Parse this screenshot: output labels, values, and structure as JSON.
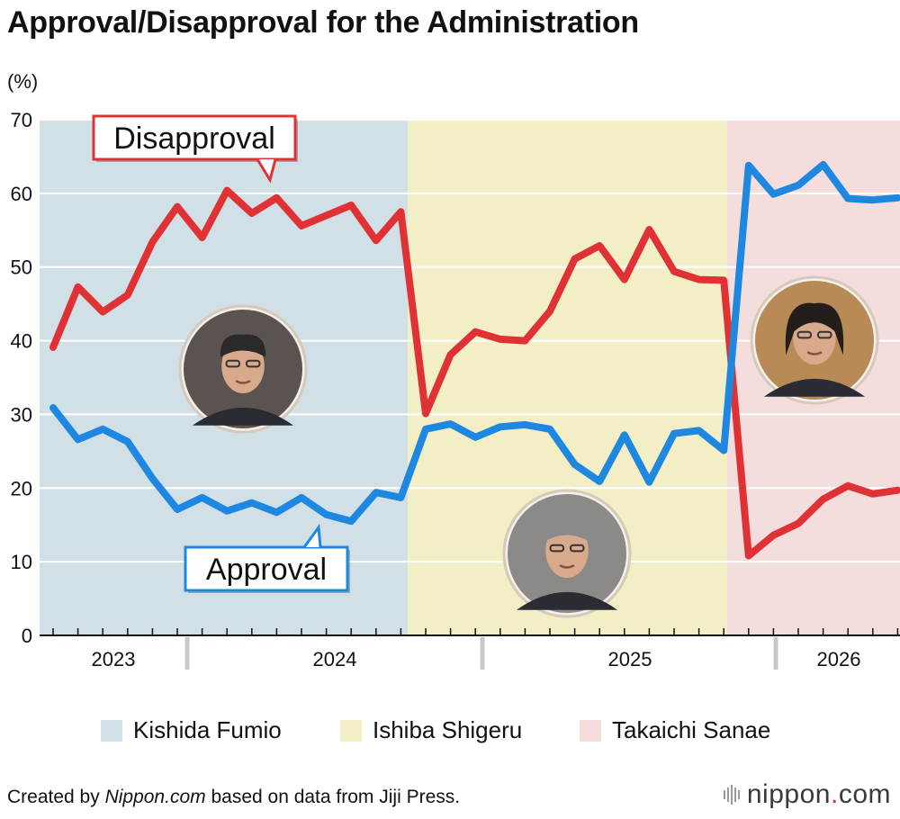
{
  "chart_data": {
    "type": "line",
    "title": "Approval/Disapproval for the Administration",
    "ylabel": "(%)",
    "ylim": [
      0,
      70
    ],
    "yticks": [
      0,
      10,
      20,
      30,
      40,
      50,
      60,
      70
    ],
    "grid": true,
    "year_labels": [
      "2023",
      "2024",
      "2025",
      "2026"
    ],
    "series": [
      {
        "name": "Disapproval",
        "color": "#e03234",
        "values": [
          39.1,
          47.3,
          43.9,
          46.2,
          53.4,
          58.2,
          54.0,
          60.4,
          57.3,
          59.4,
          55.6,
          57.0,
          58.4,
          53.6,
          57.5,
          30.1,
          38.1,
          41.2,
          40.2,
          40.0,
          44.0,
          51.1,
          52.9,
          48.3,
          55.1,
          49.4,
          48.3,
          48.2,
          10.8,
          13.6,
          15.2,
          18.5,
          20.3,
          19.2,
          19.7
        ]
      },
      {
        "name": "Approval",
        "color": "#1e88e0",
        "values": [
          30.9,
          26.6,
          28.0,
          26.3,
          21.3,
          17.1,
          18.7,
          16.9,
          18.0,
          16.7,
          18.7,
          16.4,
          15.5,
          19.4,
          18.7,
          28.0,
          28.7,
          26.9,
          28.3,
          28.6,
          28.0,
          23.2,
          20.9,
          27.2,
          20.8,
          27.4,
          27.8,
          25.1,
          63.8,
          59.9,
          61.1,
          63.9,
          59.3,
          59.1,
          59.4
        ]
      }
    ],
    "administrations": [
      {
        "name": "Kishida Fumio",
        "color": "#d1e0e6"
      },
      {
        "name": "Ishiba Shigeru",
        "color": "#f2efc7"
      },
      {
        "name": "Takaichi Sanae",
        "color": "#f4dddd"
      }
    ]
  },
  "callouts": {
    "disapproval": "Disapproval",
    "approval": "Approval"
  },
  "footer": {
    "prefix": "Created by ",
    "site": "Nippon.com",
    "suffix": " based on data from Jiji Press."
  },
  "logo": {
    "name": "nippon",
    "dot": ".",
    "tld": "com"
  }
}
